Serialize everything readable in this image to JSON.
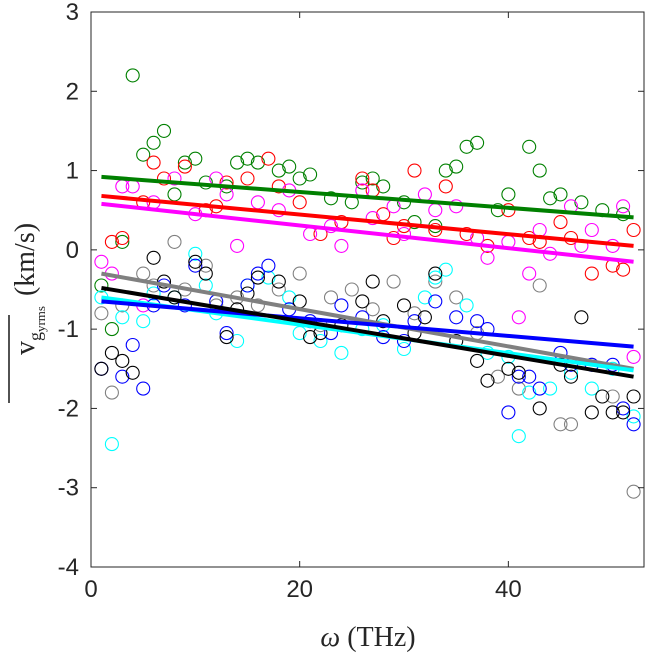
{
  "chart_data": {
    "type": "scatter",
    "title": "",
    "xlabel": "ω (THz)",
    "ylabel": "v̄ g y rms (km/s)",
    "ylabel_parts": {
      "main": "v",
      "sub1": "g",
      "sub2": "y",
      "sub3": "rms",
      "units": "(km/s)"
    },
    "xlabel_parts": {
      "symbol": "ω",
      "units": "(THz)"
    },
    "xlim": [
      0,
      53
    ],
    "ylim": [
      -4,
      3
    ],
    "xticks": [
      0,
      20,
      40
    ],
    "yticks": [
      -4,
      -3,
      -2,
      -1,
      0,
      1,
      2,
      3
    ],
    "grid": false,
    "series": [
      {
        "name": "green",
        "color": "#008000",
        "fit": [
          [
            1,
            0.92
          ],
          [
            52,
            0.41
          ]
        ],
        "points": [
          [
            1,
            -0.45
          ],
          [
            2,
            -1.0
          ],
          [
            3,
            0.1
          ],
          [
            4,
            2.2
          ],
          [
            5,
            1.2
          ],
          [
            6,
            1.35
          ],
          [
            7,
            1.5
          ],
          [
            8,
            0.7
          ],
          [
            9,
            1.1
          ],
          [
            10,
            1.15
          ],
          [
            11,
            0.85
          ],
          [
            13,
            0.8
          ],
          [
            14,
            1.1
          ],
          [
            15,
            1.15
          ],
          [
            16,
            1.1
          ],
          [
            18,
            1.0
          ],
          [
            19,
            1.05
          ],
          [
            20,
            0.9
          ],
          [
            21,
            0.95
          ],
          [
            23,
            0.65
          ],
          [
            25,
            0.6
          ],
          [
            26,
            0.85
          ],
          [
            27,
            0.9
          ],
          [
            28,
            0.8
          ],
          [
            30,
            0.6
          ],
          [
            31,
            0.35
          ],
          [
            33,
            0.3
          ],
          [
            34,
            1.0
          ],
          [
            35,
            1.05
          ],
          [
            36,
            1.3
          ],
          [
            37,
            1.35
          ],
          [
            39,
            0.5
          ],
          [
            40,
            0.7
          ],
          [
            42,
            1.3
          ],
          [
            43,
            1.0
          ],
          [
            44,
            0.65
          ],
          [
            45,
            0.7
          ],
          [
            47,
            0.6
          ],
          [
            49,
            0.5
          ],
          [
            51,
            0.45
          ]
        ]
      },
      {
        "name": "red",
        "color": "#ff0000",
        "fit": [
          [
            1,
            0.68
          ],
          [
            52,
            0.05
          ]
        ],
        "points": [
          [
            2,
            0.1
          ],
          [
            3,
            0.15
          ],
          [
            5,
            0.6
          ],
          [
            6,
            1.1
          ],
          [
            7,
            0.9
          ],
          [
            9,
            1.05
          ],
          [
            11,
            0.5
          ],
          [
            12,
            0.55
          ],
          [
            13,
            0.85
          ],
          [
            15,
            0.9
          ],
          [
            17,
            1.15
          ],
          [
            18,
            0.8
          ],
          [
            20,
            0.6
          ],
          [
            22,
            0.2
          ],
          [
            24,
            0.35
          ],
          [
            26,
            0.9
          ],
          [
            27,
            0.75
          ],
          [
            28,
            0.45
          ],
          [
            29,
            0.15
          ],
          [
            30,
            0.3
          ],
          [
            31,
            1.0
          ],
          [
            33,
            0.25
          ],
          [
            34,
            0.8
          ],
          [
            36,
            0.2
          ],
          [
            38,
            0.05
          ],
          [
            40,
            0.5
          ],
          [
            42,
            0.15
          ],
          [
            43,
            0.1
          ],
          [
            45,
            0.35
          ],
          [
            46,
            0.15
          ],
          [
            48,
            -0.3
          ],
          [
            50,
            -0.2
          ],
          [
            51,
            -0.25
          ],
          [
            52,
            0.25
          ]
        ]
      },
      {
        "name": "magenta",
        "color": "#ff00ff",
        "fit": [
          [
            1,
            0.58
          ],
          [
            52,
            -0.15
          ]
        ],
        "points": [
          [
            1,
            -0.15
          ],
          [
            2,
            -0.3
          ],
          [
            3,
            0.8
          ],
          [
            4,
            0.8
          ],
          [
            5,
            -0.7
          ],
          [
            6,
            0.6
          ],
          [
            8,
            0.9
          ],
          [
            10,
            0.45
          ],
          [
            12,
            0.9
          ],
          [
            13,
            0.7
          ],
          [
            14,
            0.05
          ],
          [
            16,
            0.6
          ],
          [
            18,
            0.5
          ],
          [
            19,
            0.75
          ],
          [
            21,
            0.2
          ],
          [
            23,
            0.3
          ],
          [
            24,
            0.05
          ],
          [
            26,
            0.75
          ],
          [
            27,
            0.4
          ],
          [
            29,
            0.55
          ],
          [
            30,
            0.2
          ],
          [
            32,
            0.7
          ],
          [
            33,
            0.5
          ],
          [
            35,
            0.55
          ],
          [
            37,
            0.15
          ],
          [
            38,
            -0.1
          ],
          [
            40,
            0.1
          ],
          [
            41,
            -0.85
          ],
          [
            42,
            -0.3
          ],
          [
            43,
            0.25
          ],
          [
            44,
            -0.05
          ],
          [
            46,
            0.55
          ],
          [
            47,
            0.05
          ],
          [
            48,
            0.25
          ],
          [
            50,
            0.05
          ],
          [
            51,
            0.55
          ],
          [
            52,
            -1.35
          ]
        ]
      },
      {
        "name": "gray",
        "color": "#808080",
        "fit": [
          [
            1,
            -0.3
          ],
          [
            52,
            -1.5
          ]
        ],
        "points": [
          [
            1,
            -0.8
          ],
          [
            2,
            -1.8
          ],
          [
            3,
            -0.7
          ],
          [
            5,
            -0.3
          ],
          [
            6,
            -0.45
          ],
          [
            8,
            0.1
          ],
          [
            9,
            -0.5
          ],
          [
            11,
            -0.2
          ],
          [
            12,
            -0.7
          ],
          [
            14,
            -0.6
          ],
          [
            16,
            -0.7
          ],
          [
            18,
            -0.5
          ],
          [
            20,
            -0.3
          ],
          [
            22,
            -0.95
          ],
          [
            23,
            -0.6
          ],
          [
            25,
            -0.5
          ],
          [
            27,
            -0.75
          ],
          [
            29,
            -0.4
          ],
          [
            31,
            -0.8
          ],
          [
            33,
            -0.4
          ],
          [
            35,
            -0.6
          ],
          [
            37,
            -1.05
          ],
          [
            39,
            -1.6
          ],
          [
            41,
            -1.75
          ],
          [
            43,
            -0.45
          ],
          [
            45,
            -2.2
          ],
          [
            46,
            -2.2
          ],
          [
            48,
            -1.45
          ],
          [
            50,
            -1.85
          ],
          [
            52,
            -3.05
          ]
        ]
      },
      {
        "name": "cyan",
        "color": "#00ffff",
        "fit": [
          [
            1,
            -0.6
          ],
          [
            52,
            -1.52
          ]
        ],
        "points": [
          [
            1,
            -0.6
          ],
          [
            2,
            -2.45
          ],
          [
            3,
            -0.85
          ],
          [
            5,
            -0.9
          ],
          [
            6,
            -0.55
          ],
          [
            8,
            -0.6
          ],
          [
            10,
            -0.05
          ],
          [
            11,
            -0.45
          ],
          [
            12,
            -0.8
          ],
          [
            14,
            -1.15
          ],
          [
            15,
            -0.45
          ],
          [
            17,
            -0.35
          ],
          [
            19,
            -0.6
          ],
          [
            20,
            -1.05
          ],
          [
            22,
            -1.15
          ],
          [
            24,
            -1.3
          ],
          [
            26,
            -1.0
          ],
          [
            28,
            -0.95
          ],
          [
            30,
            -1.25
          ],
          [
            32,
            -0.6
          ],
          [
            33,
            -0.35
          ],
          [
            34,
            -0.25
          ],
          [
            36,
            -0.7
          ],
          [
            38,
            -1.3
          ],
          [
            40,
            -1.35
          ],
          [
            41,
            -2.35
          ],
          [
            42,
            -1.8
          ],
          [
            44,
            -1.75
          ],
          [
            46,
            -1.55
          ],
          [
            48,
            -1.75
          ],
          [
            50,
            -1.5
          ],
          [
            52,
            -2.1
          ]
        ]
      },
      {
        "name": "blue",
        "color": "#0000ff",
        "fit": [
          [
            1,
            -0.65
          ],
          [
            52,
            -1.22
          ]
        ],
        "points": [
          [
            1,
            -1.5
          ],
          [
            3,
            -1.6
          ],
          [
            4,
            -1.2
          ],
          [
            5,
            -1.75
          ],
          [
            6,
            -0.7
          ],
          [
            7,
            -0.45
          ],
          [
            9,
            -0.7
          ],
          [
            10,
            -0.2
          ],
          [
            12,
            -0.65
          ],
          [
            13,
            -1.05
          ],
          [
            15,
            -0.45
          ],
          [
            16,
            -0.3
          ],
          [
            17,
            -0.2
          ],
          [
            19,
            -0.75
          ],
          [
            21,
            -0.9
          ],
          [
            23,
            -1.05
          ],
          [
            24,
            -0.7
          ],
          [
            26,
            -0.85
          ],
          [
            28,
            -1.1
          ],
          [
            30,
            -1.15
          ],
          [
            31,
            -0.9
          ],
          [
            33,
            -0.65
          ],
          [
            35,
            -0.85
          ],
          [
            37,
            -0.9
          ],
          [
            38,
            -1.0
          ],
          [
            40,
            -2.05
          ],
          [
            41,
            -1.6
          ],
          [
            42,
            -1.6
          ],
          [
            43,
            -1.75
          ],
          [
            45,
            -1.3
          ],
          [
            46,
            -1.45
          ],
          [
            48,
            -1.45
          ],
          [
            50,
            -1.45
          ],
          [
            51,
            -2.0
          ],
          [
            52,
            -2.2
          ]
        ]
      },
      {
        "name": "black",
        "color": "#000000",
        "fit": [
          [
            1,
            -0.48
          ],
          [
            52,
            -1.6
          ]
        ],
        "points": [
          [
            1,
            -1.5
          ],
          [
            2,
            -1.3
          ],
          [
            3,
            -1.4
          ],
          [
            4,
            -1.55
          ],
          [
            6,
            -0.1
          ],
          [
            7,
            -0.4
          ],
          [
            8,
            -0.6
          ],
          [
            10,
            -0.15
          ],
          [
            11,
            -0.3
          ],
          [
            13,
            -1.1
          ],
          [
            14,
            -0.75
          ],
          [
            15,
            -0.55
          ],
          [
            16,
            -0.35
          ],
          [
            18,
            -0.4
          ],
          [
            20,
            -0.65
          ],
          [
            21,
            -1.1
          ],
          [
            22,
            -1.05
          ],
          [
            24,
            -0.95
          ],
          [
            26,
            -0.65
          ],
          [
            27,
            -0.4
          ],
          [
            28,
            -0.9
          ],
          [
            30,
            -0.7
          ],
          [
            31,
            -1.05
          ],
          [
            32,
            -0.85
          ],
          [
            33,
            -0.3
          ],
          [
            35,
            -1.15
          ],
          [
            37,
            -1.4
          ],
          [
            38,
            -1.65
          ],
          [
            40,
            -1.5
          ],
          [
            41,
            -1.55
          ],
          [
            43,
            -2.0
          ],
          [
            45,
            -1.45
          ],
          [
            46,
            -1.6
          ],
          [
            47,
            -0.85
          ],
          [
            48,
            -2.05
          ],
          [
            49,
            -1.85
          ],
          [
            50,
            -2.05
          ],
          [
            51,
            -2.05
          ],
          [
            52,
            -1.85
          ]
        ]
      }
    ]
  }
}
